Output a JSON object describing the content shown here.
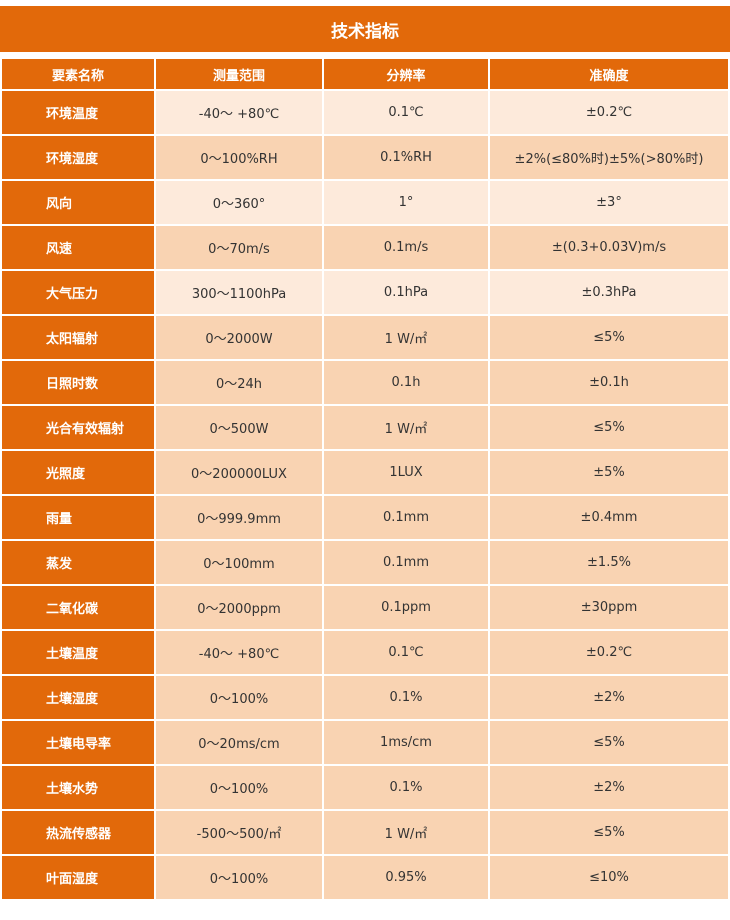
{
  "title": "技术指标",
  "headers": [
    "要素名称",
    "测量范围",
    "分辨率",
    "准确度"
  ],
  "colors": {
    "header": "#e2690a",
    "row_light": "#fdeadb",
    "row_dark": "#f9d3b2"
  },
  "rows": [
    {
      "name": "环境温度",
      "range": "-40～ +80℃",
      "resolution": "0.1℃",
      "accuracy": "±0.2℃",
      "light": true
    },
    {
      "name": "环境湿度",
      "range": "0～100%RH",
      "resolution": "0.1%RH",
      "accuracy": "±2%(≤80%时)±5%(>80%时)",
      "light": false
    },
    {
      "name": "风向",
      "range": "0～360°",
      "resolution": "1°",
      "accuracy": "±3°",
      "light": true
    },
    {
      "name": "风速",
      "range": "0～70m/s",
      "resolution": "0.1m/s",
      "accuracy": "±(0.3+0.03V)m/s",
      "light": false
    },
    {
      "name": "大气压力",
      "range": "300～1100hPa",
      "resolution": "0.1hPa",
      "accuracy": "±0.3hPa",
      "light": true
    },
    {
      "name": "太阳辐射",
      "range": "0～2000W",
      "resolution": "1 W/㎡",
      "accuracy": "≤5%",
      "light": false
    },
    {
      "name": "日照时数",
      "range": "0～24h",
      "resolution": "0.1h",
      "accuracy": "±0.1h",
      "light": false
    },
    {
      "name": "光合有效辐射",
      "range": "0～500W",
      "resolution": "1 W/㎡",
      "accuracy": "≤5%",
      "light": false
    },
    {
      "name": "光照度",
      "range": "0～200000LUX",
      "resolution": "1LUX",
      "accuracy": "±5%",
      "light": false
    },
    {
      "name": "雨量",
      "range": "0～999.9mm",
      "resolution": "0.1mm",
      "accuracy": "±0.4mm",
      "light": false
    },
    {
      "name": "蒸发",
      "range": "0～100mm",
      "resolution": "0.1mm",
      "accuracy": "±1.5%",
      "light": false
    },
    {
      "name": "二氧化碳",
      "range": "0～2000ppm",
      "resolution": "0.1ppm",
      "accuracy": "±30ppm",
      "light": false
    },
    {
      "name": "土壤温度",
      "range": "-40～ +80℃",
      "resolution": "0.1℃",
      "accuracy": "±0.2℃",
      "light": false
    },
    {
      "name": "土壤湿度",
      "range": "0～100%",
      "resolution": "0.1%",
      "accuracy": "±2%",
      "light": false
    },
    {
      "name": "土壤电导率",
      "range": "0～20ms/cm",
      "resolution": "1ms/cm",
      "accuracy": "≤5%",
      "light": false
    },
    {
      "name": "土壤水势",
      "range": "0～100%",
      "resolution": "0.1%",
      "accuracy": "±2%",
      "light": false
    },
    {
      "name": "热流传感器",
      "range": "-500～500/㎡",
      "resolution": "1 W/㎡",
      "accuracy": "≤5%",
      "light": false
    },
    {
      "name": "叶面湿度",
      "range": "0～100%",
      "resolution": "0.95%",
      "accuracy": "≤10%",
      "light": false
    }
  ]
}
